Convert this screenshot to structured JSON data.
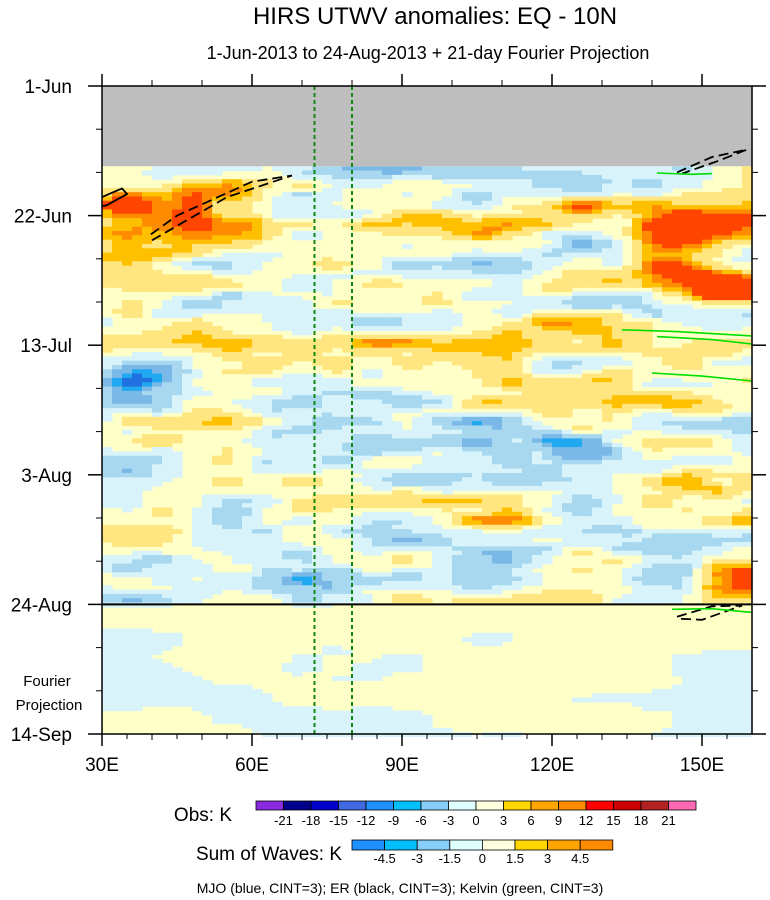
{
  "chart_data": {
    "type": "heatmap",
    "title": "HIRS UTWV anomalies: EQ - 10N",
    "subtitle": "1-Jun-2013 to 24-Aug-2013 + 21-day Fourier Projection",
    "x_axis": {
      "range": [
        30,
        160
      ],
      "ticks": [
        {
          "value": 30,
          "label": "30E"
        },
        {
          "value": 60,
          "label": "60E"
        },
        {
          "value": 90,
          "label": "90E"
        },
        {
          "value": 120,
          "label": "120E"
        },
        {
          "value": 150,
          "label": "150E"
        }
      ]
    },
    "y_axis": {
      "range_days": [
        0,
        105
      ],
      "ticks": [
        {
          "day": 0,
          "label": "1-Jun"
        },
        {
          "day": 21,
          "label": "22-Jun"
        },
        {
          "day": 42,
          "label": "13-Jul"
        },
        {
          "day": 63,
          "label": "3-Aug"
        },
        {
          "day": 84,
          "label": "24-Aug"
        },
        {
          "day": 105,
          "label": "14-Sep"
        }
      ]
    },
    "observation_end_day": 84,
    "missing_data_until_day": 13,
    "projection_label_line1": "Fourier",
    "projection_label_line2": "Projection",
    "reference_lons": [
      72.5,
      80
    ],
    "obs_colorbar": {
      "label": "Obs: K",
      "levels": [
        "-21",
        "-18",
        "-15",
        "-12",
        "-9",
        "-6",
        "-3",
        "0",
        "3",
        "6",
        "9",
        "12",
        "15",
        "18",
        "21"
      ],
      "colors": [
        "#8a2be2",
        "#00008b",
        "#0000cd",
        "#4169e1",
        "#1e90ff",
        "#00bfff",
        "#87cefa",
        "#e0ffff",
        "#ffffe0",
        "#ffd700",
        "#ffa500",
        "#ff8c00",
        "#ff0000",
        "#cd0000",
        "#b22222",
        "#ff69b4"
      ]
    },
    "waves_colorbar": {
      "label": "Sum of Waves: K",
      "levels": [
        "-4.5",
        "-3",
        "-1.5",
        "0",
        "1.5",
        "3",
        "4.5"
      ],
      "colors": [
        "#1e90ff",
        "#00bfff",
        "#87cefa",
        "#e0ffff",
        "#ffffe0",
        "#ffd700",
        "#ffa500",
        "#ff8c00"
      ]
    },
    "contour_legend": "MJO (blue, CINT=3); ER (black, CINT=3); Kelvin (green, CINT=3)",
    "field_colors": {
      "missing": "#bebebe",
      "neutral_pos": "#ffffc8",
      "neutral_neg": "#d8f4fa",
      "pos3": "#ffe680",
      "pos6": "#ffc000",
      "pos9": "#ff8c00",
      "pos12": "#ff4500",
      "neg3": "#a8d8f0",
      "neg6": "#7ab8e8",
      "neg9": "#20a8f0",
      "neg12": "#2070e0",
      "er_line": "#000000",
      "kelvin_line": "#00dd00",
      "ref_line": "#118811"
    },
    "anomaly_bands": [
      {
        "lon0": 30,
        "lon1": 160,
        "day0": 13,
        "day1": 84,
        "sign": 1,
        "strength": 0.6
      },
      {
        "lon0": 30,
        "lon1": 48,
        "day0": 17,
        "day1": 27,
        "sign": 1,
        "strength": 3
      },
      {
        "lon0": 48,
        "lon1": 62,
        "day0": 17,
        "day1": 25,
        "sign": 1,
        "strength": 2
      },
      {
        "lon0": 100,
        "lon1": 160,
        "day0": 19,
        "day1": 24,
        "sign": 1,
        "strength": 2
      },
      {
        "lon0": 140,
        "lon1": 160,
        "day0": 21,
        "day1": 26,
        "sign": 1,
        "strength": 3
      },
      {
        "lon0": 142,
        "lon1": 160,
        "day0": 29,
        "day1": 35,
        "sign": 1,
        "strength": 3
      },
      {
        "lon0": 150,
        "lon1": 160,
        "day0": 31,
        "day1": 34,
        "sign": 1,
        "strength": 4
      },
      {
        "lon0": 125,
        "lon1": 160,
        "day0": 39,
        "day1": 47,
        "sign": 1,
        "strength": 2
      },
      {
        "lon0": 38,
        "lon1": 62,
        "day0": 54,
        "day1": 58,
        "sign": 1,
        "strength": 1
      },
      {
        "lon0": 30,
        "lon1": 50,
        "day0": 66,
        "day1": 72,
        "sign": 1,
        "strength": 2
      },
      {
        "lon0": 150,
        "lon1": 160,
        "day0": 78,
        "day1": 83,
        "sign": 1,
        "strength": 3
      },
      {
        "lon0": 30,
        "lon1": 160,
        "day0": 13,
        "day1": 17,
        "sign": -1,
        "strength": 1
      },
      {
        "lon0": 30,
        "lon1": 110,
        "day0": 34,
        "day1": 39,
        "sign": -1,
        "strength": 1
      },
      {
        "lon0": 30,
        "lon1": 150,
        "day0": 44,
        "day1": 50,
        "sign": -1,
        "strength": 1
      },
      {
        "lon0": 30,
        "lon1": 140,
        "day0": 52,
        "day1": 64,
        "sign": -1,
        "strength": 1
      },
      {
        "lon0": 30,
        "lon1": 150,
        "day0": 73,
        "day1": 82,
        "sign": -1,
        "strength": 1
      },
      {
        "lon0": 35,
        "lon1": 45,
        "day0": 45,
        "day1": 48,
        "sign": -1,
        "strength": 2
      },
      {
        "lon0": 120,
        "lon1": 130,
        "day0": 57,
        "day1": 60,
        "sign": -1,
        "strength": 2
      },
      {
        "lon0": 30,
        "lon1": 160,
        "day0": 84,
        "day1": 105,
        "sign": 1,
        "strength": 0.3
      },
      {
        "lon0": 30,
        "lon1": 80,
        "day0": 85,
        "day1": 105,
        "sign": -1,
        "strength": 0.3
      },
      {
        "lon0": 145,
        "lon1": 160,
        "day0": 90,
        "day1": 105,
        "sign": -1,
        "strength": 0.5
      },
      {
        "lon0": 115,
        "lon1": 128,
        "day0": 89,
        "day1": 92,
        "sign": 1,
        "strength": 1
      }
    ],
    "contours": [
      {
        "wave": "ER",
        "style": "dashed",
        "points": [
          [
            40,
            25
          ],
          [
            55,
            18
          ],
          [
            68,
            14.5
          ],
          [
            60,
            15.5
          ],
          [
            45,
            21
          ],
          [
            39,
            24.5
          ]
        ]
      },
      {
        "wave": "ER",
        "style": "dashed",
        "points": [
          [
            145,
            14
          ],
          [
            152,
            11.5
          ],
          [
            159,
            10.3
          ],
          [
            153,
            12.2
          ],
          [
            146,
            14.2
          ]
        ]
      },
      {
        "wave": "ER",
        "style": "dashed",
        "points": [
          [
            145,
            86
          ],
          [
            152,
            84.3
          ],
          [
            158,
            84.2
          ],
          [
            150,
            86.5
          ],
          [
            145,
            86.3
          ]
        ]
      },
      {
        "wave": "ER",
        "style": "solid",
        "points": [
          [
            30,
            18
          ],
          [
            34,
            16.6
          ],
          [
            35,
            17.5
          ],
          [
            31,
            19.3
          ],
          [
            30,
            19.5
          ]
        ]
      },
      {
        "wave": "Kelvin",
        "style": "solid",
        "points": [
          [
            141,
            14.1
          ],
          [
            148,
            14.3
          ],
          [
            152,
            14.2
          ]
        ]
      },
      {
        "wave": "Kelvin",
        "style": "solid",
        "points": [
          [
            134,
            39.5
          ],
          [
            145,
            39.8
          ],
          [
            160,
            40.5
          ]
        ]
      },
      {
        "wave": "Kelvin",
        "style": "solid",
        "points": [
          [
            141,
            40.6
          ],
          [
            152,
            41.1
          ],
          [
            160,
            41.8
          ]
        ]
      },
      {
        "wave": "Kelvin",
        "style": "solid",
        "points": [
          [
            140,
            46.5
          ],
          [
            150,
            47
          ],
          [
            160,
            47.8
          ]
        ]
      },
      {
        "wave": "Kelvin",
        "style": "solid",
        "points": [
          [
            144,
            84.8
          ],
          [
            152,
            84.7
          ],
          [
            160,
            85.3
          ]
        ]
      }
    ]
  }
}
